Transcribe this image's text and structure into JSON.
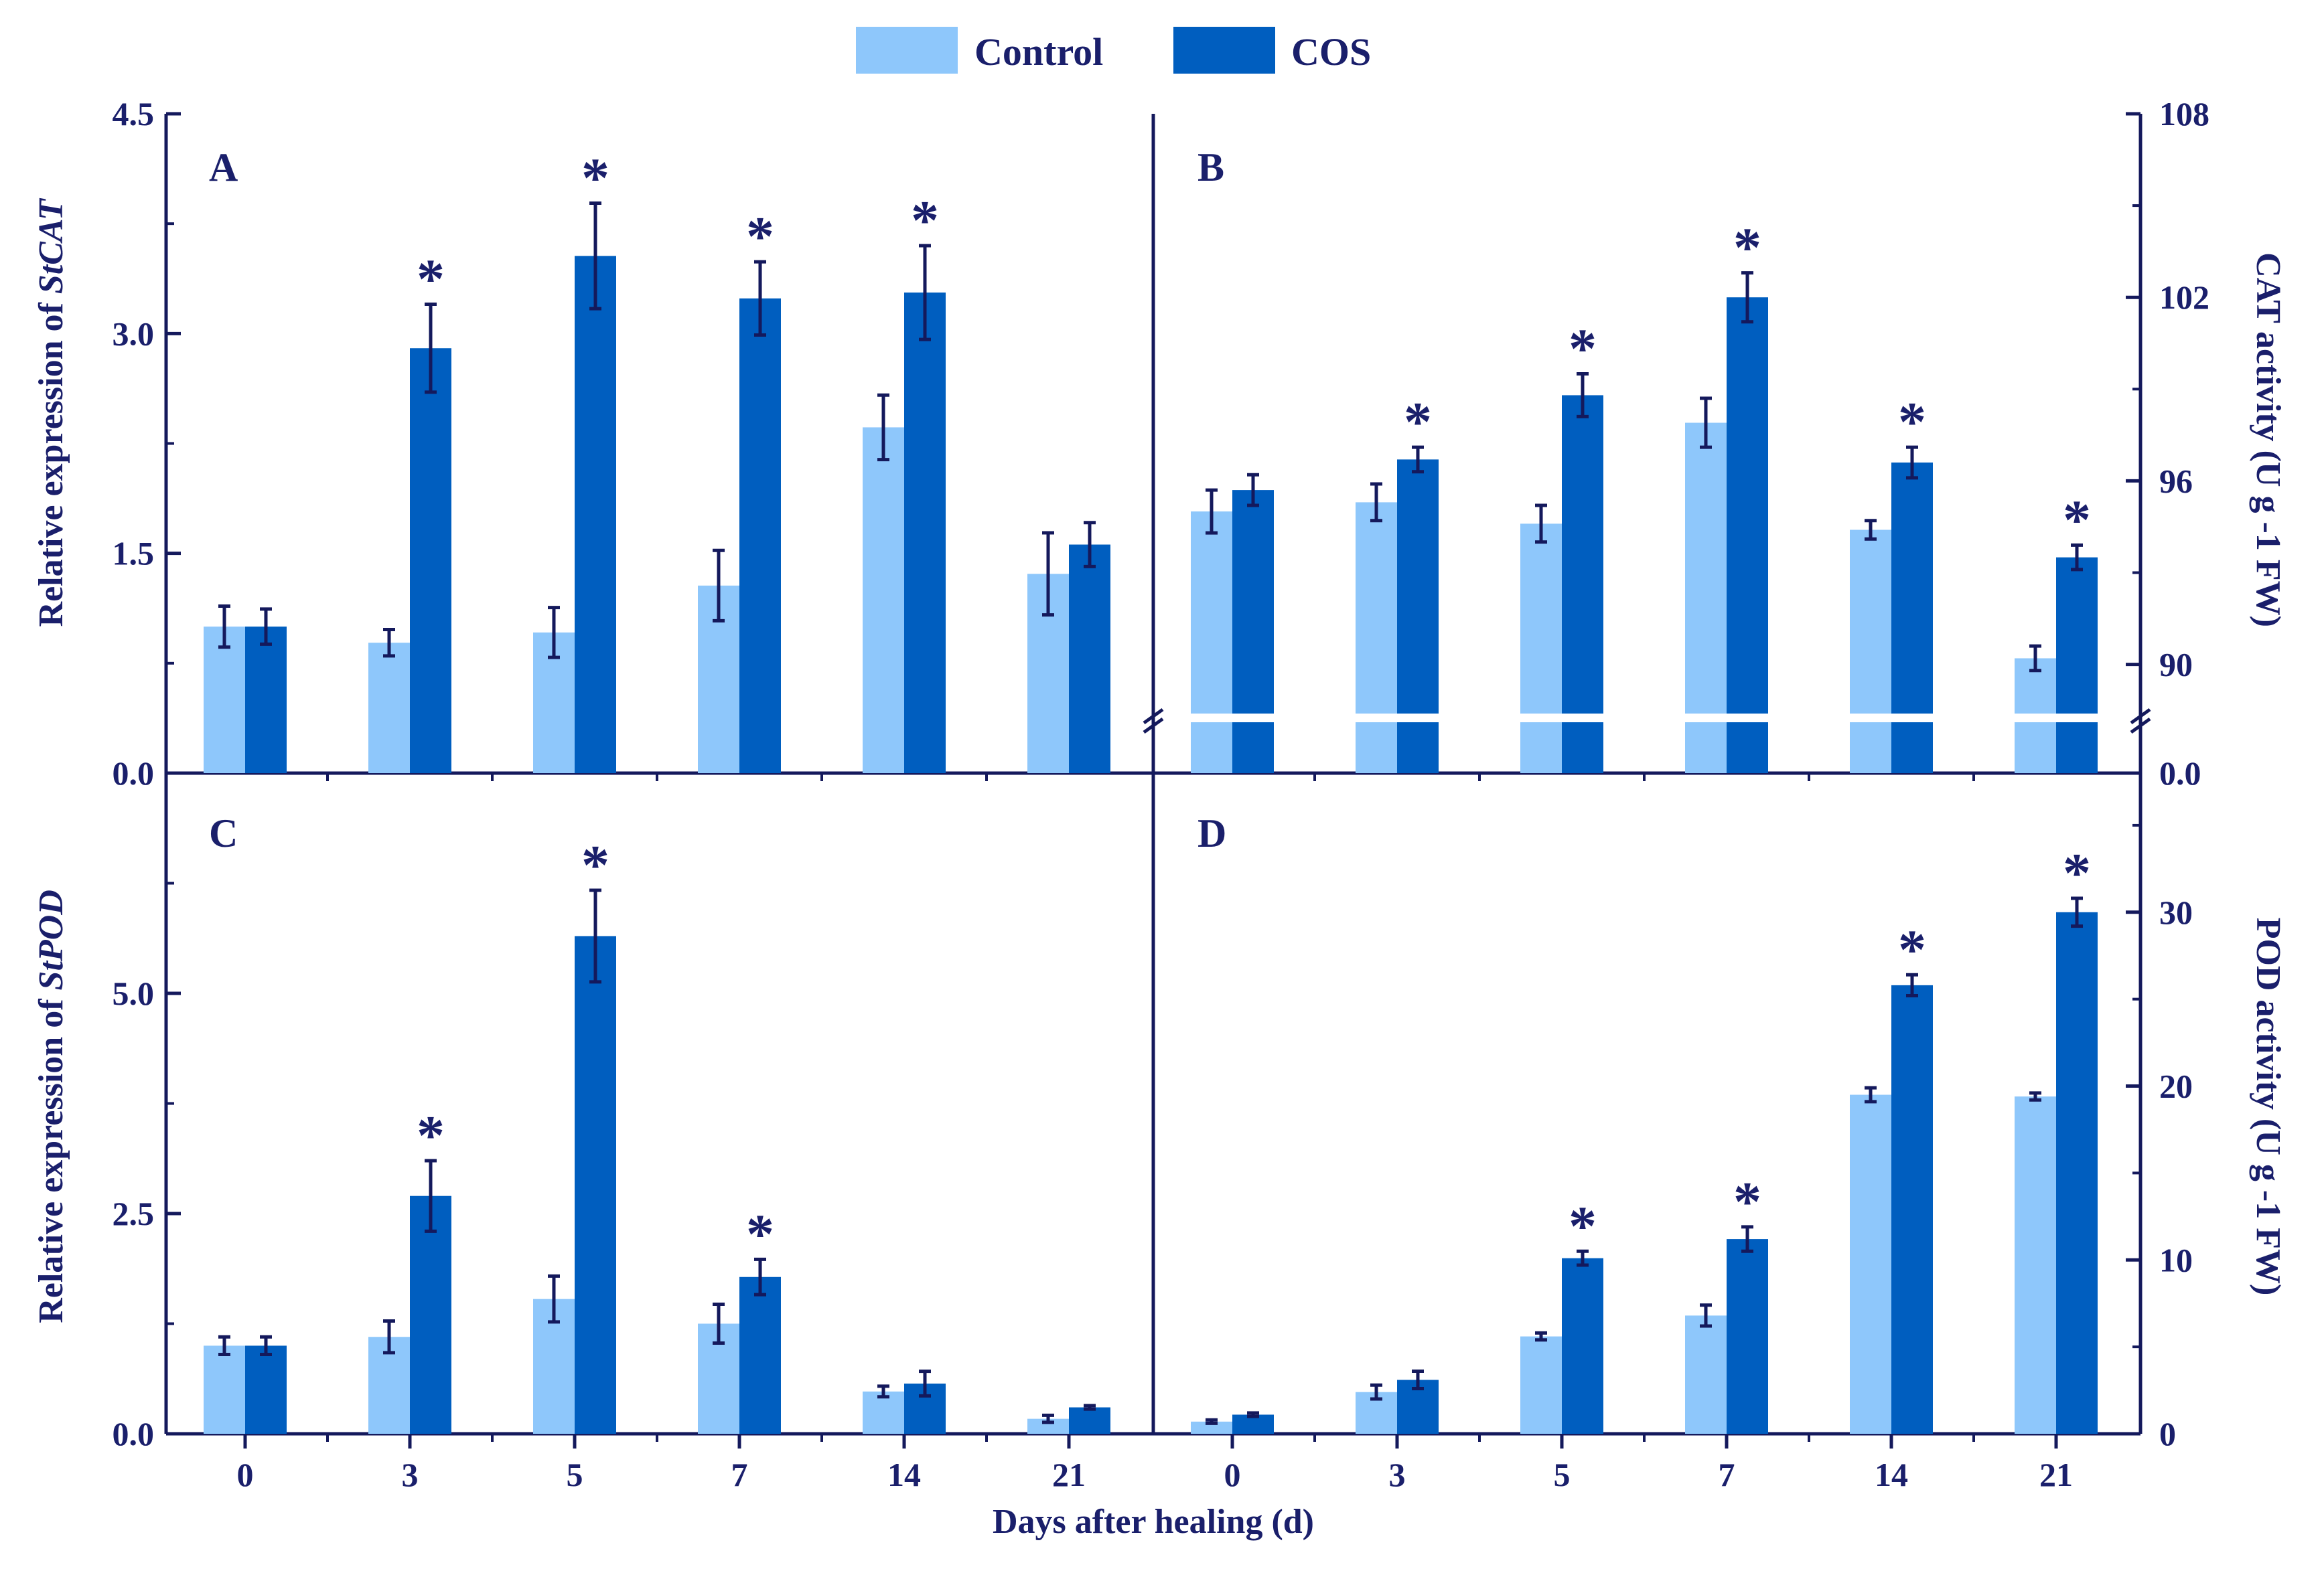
{
  "colors": {
    "control": "#8ec7fb",
    "cos": "#005ebf",
    "axis": "#14195c",
    "text": "#1a1f6b"
  },
  "legend": {
    "control": "Control",
    "cos": "COS"
  },
  "xlabel": "Days after healing (d)",
  "chart_data": [
    {
      "type": "bar",
      "panel": "A",
      "ylabel_prefix": "Relative expression of ",
      "ylabel_gene": "StCAT",
      "categories": [
        "0",
        "3",
        "5",
        "7",
        "14",
        "21"
      ],
      "ylim": [
        0,
        4.5
      ],
      "yticks": [
        "0.0",
        "1.5",
        "3.0",
        "4.5"
      ],
      "series": [
        {
          "name": "Control",
          "values": [
            1.0,
            0.89,
            0.96,
            1.28,
            2.36,
            1.36
          ],
          "errors": [
            0.14,
            0.09,
            0.17,
            0.24,
            0.22,
            0.28
          ]
        },
        {
          "name": "COS",
          "values": [
            1.0,
            2.9,
            3.53,
            3.24,
            3.28,
            1.56
          ],
          "errors": [
            0.12,
            0.3,
            0.36,
            0.25,
            0.32,
            0.15
          ]
        }
      ],
      "significant": [
        false,
        true,
        true,
        true,
        true,
        false
      ],
      "annotation": "*"
    },
    {
      "type": "bar",
      "panel": "B",
      "ylabel": "CAT activity (U g -1 FW)",
      "categories": [
        "0",
        "3",
        "5",
        "7",
        "14",
        "21"
      ],
      "ylim": [
        0,
        108
      ],
      "axis_break": [
        0,
        88
      ],
      "yticks": [
        "0.0",
        "90",
        "96",
        "102",
        "108"
      ],
      "series": [
        {
          "name": "Control",
          "values": [
            95.0,
            95.3,
            94.6,
            97.9,
            94.4,
            90.2
          ],
          "errors": [
            0.7,
            0.6,
            0.6,
            0.8,
            0.3,
            0.4
          ]
        },
        {
          "name": "COS",
          "values": [
            95.7,
            96.7,
            98.8,
            102.0,
            96.6,
            93.5
          ],
          "errors": [
            0.5,
            0.4,
            0.7,
            0.8,
            0.5,
            0.4
          ]
        }
      ],
      "significant": [
        false,
        true,
        true,
        true,
        true,
        true
      ],
      "annotation": "*"
    },
    {
      "type": "bar",
      "panel": "C",
      "ylabel_prefix": "Relative expression of ",
      "ylabel_gene": "StPOD",
      "categories": [
        "0",
        "3",
        "5",
        "7",
        "14",
        "21"
      ],
      "ylim": [
        0,
        7.5
      ],
      "yticks": [
        "0.0",
        "2.5",
        "5.0"
      ],
      "series": [
        {
          "name": "Control",
          "values": [
            1.0,
            1.1,
            1.53,
            1.25,
            0.48,
            0.17
          ],
          "errors": [
            0.1,
            0.18,
            0.26,
            0.22,
            0.06,
            0.04
          ]
        },
        {
          "name": "COS",
          "values": [
            1.0,
            2.7,
            5.65,
            1.78,
            0.57,
            0.3
          ],
          "errors": [
            0.1,
            0.4,
            0.52,
            0.2,
            0.14,
            0.02
          ]
        }
      ],
      "significant": [
        false,
        true,
        true,
        true,
        false,
        false
      ],
      "annotation": "*"
    },
    {
      "type": "bar",
      "panel": "D",
      "ylabel": "POD activity (U g -1 FW)",
      "categories": [
        "0",
        "3",
        "5",
        "7",
        "14",
        "21"
      ],
      "ylim": [
        0,
        38
      ],
      "yticks": [
        "0",
        "10",
        "20",
        "30"
      ],
      "series": [
        {
          "name": "Control",
          "values": [
            0.7,
            2.4,
            5.6,
            6.8,
            19.5,
            19.4
          ],
          "errors": [
            0.1,
            0.4,
            0.2,
            0.6,
            0.4,
            0.2
          ]
        },
        {
          "name": "COS",
          "values": [
            1.1,
            3.1,
            10.1,
            11.2,
            25.8,
            30.0
          ],
          "errors": [
            0.1,
            0.5,
            0.4,
            0.7,
            0.6,
            0.8
          ]
        }
      ],
      "significant": [
        false,
        false,
        true,
        true,
        true,
        true
      ],
      "annotation": "*"
    }
  ]
}
